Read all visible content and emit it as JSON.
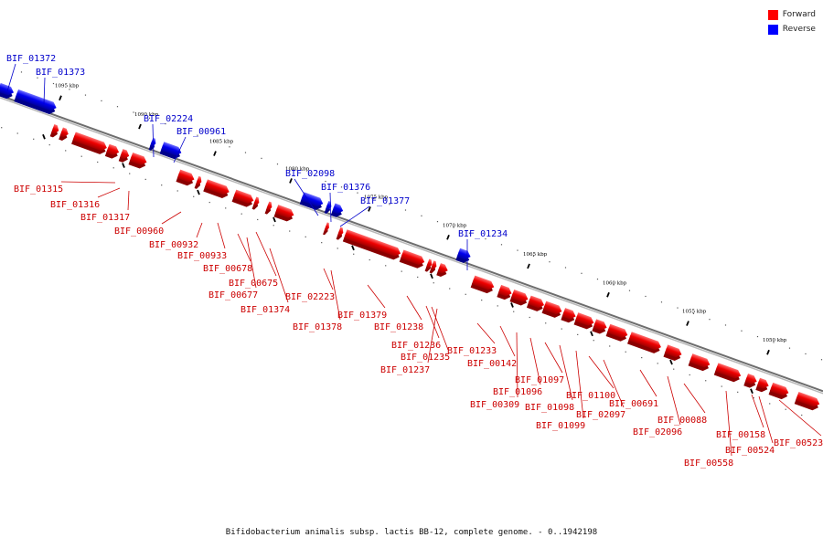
{
  "legend": {
    "forward_label": "Forward",
    "reverse_label": "Reverse",
    "forward_color": "#ff0000",
    "reverse_color": "#0000ff"
  },
  "caption": "Bifidobacterium animalis subsp. lactis BB-12, complete genome. - 0..1942198",
  "axis": {
    "ticks": [
      "1095 kbp",
      "1090 kbp",
      "1085 kbp",
      "1080 kbp",
      "1075 kbp",
      "1070 kbp",
      "1065 kbp",
      "1060 kbp",
      "1055 kbp",
      "1050 kbp"
    ]
  },
  "genes": {
    "forward": [
      "BIF_01315",
      "BIF_01316",
      "BIF_01317",
      "BIF_00960",
      "BIF_00932",
      "BIF_00933",
      "BIF_00678",
      "BIF_00677",
      "BIF_00675",
      "BIF_01374",
      "BIF_02223",
      "BIF_01378",
      "BIF_01379",
      "BIF_01238",
      "BIF_01236",
      "BIF_01235",
      "BIF_01237",
      "BIF_01233",
      "BIF_00142",
      "BIF_00309",
      "BIF_01096",
      "BIF_01097",
      "BIF_01098",
      "BIF_01099",
      "BIF_01100",
      "BIF_02097",
      "BIF_00691",
      "BIF_02096",
      "BIF_00088",
      "BIF_00558",
      "BIF_00158",
      "BIF_00524",
      "BIF_00523"
    ],
    "reverse": [
      "BIF_01372",
      "BIF_01373",
      "BIF_02224",
      "BIF_00961",
      "BIF_02098",
      "BIF_01376",
      "BIF_01377",
      "BIF_01234"
    ]
  },
  "icons": {
    "forward": "red-square-icon",
    "reverse": "blue-square-icon"
  }
}
